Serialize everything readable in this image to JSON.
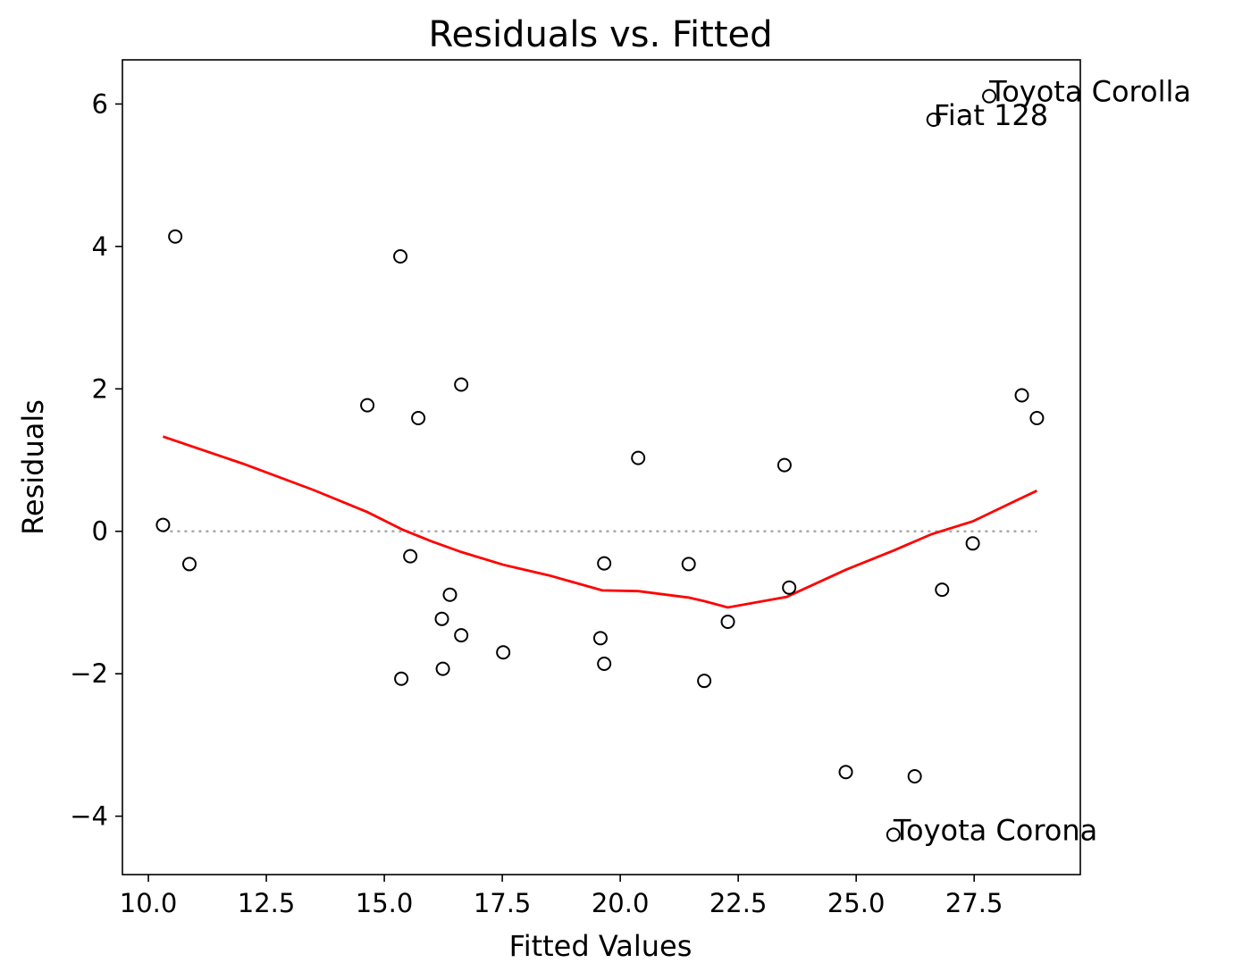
{
  "chart_data": {
    "type": "scatter",
    "title": "Residuals vs. Fitted",
    "xlabel": "Fitted Values",
    "ylabel": "Residuals",
    "xlim": [
      9.45,
      29.75
    ],
    "ylim": [
      -4.82,
      6.62
    ],
    "xticks": [
      10.0,
      12.5,
      15.0,
      17.5,
      20.0,
      22.5,
      25.0,
      27.5
    ],
    "xtick_labels": [
      "10.0",
      "12.5",
      "15.0",
      "17.5",
      "20.0",
      "22.5",
      "25.0",
      "27.5"
    ],
    "yticks": [
      -4,
      -2,
      0,
      2,
      4,
      6
    ],
    "ytick_labels": [
      "−4",
      "−2",
      "0",
      "2",
      "4",
      "6"
    ],
    "grid": false,
    "points": [
      {
        "x": 10.31,
        "y": 0.09
      },
      {
        "x": 10.57,
        "y": 4.14
      },
      {
        "x": 10.87,
        "y": -0.46
      },
      {
        "x": 14.64,
        "y": 1.77
      },
      {
        "x": 15.34,
        "y": 3.86
      },
      {
        "x": 15.36,
        "y": -2.07
      },
      {
        "x": 15.55,
        "y": -0.35
      },
      {
        "x": 15.72,
        "y": 1.59
      },
      {
        "x": 16.22,
        "y": -1.23
      },
      {
        "x": 16.24,
        "y": -1.93
      },
      {
        "x": 16.39,
        "y": -0.89
      },
      {
        "x": 16.63,
        "y": 2.06
      },
      {
        "x": 16.63,
        "y": -1.46
      },
      {
        "x": 17.52,
        "y": -1.7
      },
      {
        "x": 19.58,
        "y": -1.5
      },
      {
        "x": 19.66,
        "y": -0.45
      },
      {
        "x": 19.66,
        "y": -1.86
      },
      {
        "x": 20.38,
        "y": 1.03
      },
      {
        "x": 21.45,
        "y": -0.46
      },
      {
        "x": 21.78,
        "y": -2.1
      },
      {
        "x": 22.28,
        "y": -1.27
      },
      {
        "x": 23.48,
        "y": 0.93
      },
      {
        "x": 23.58,
        "y": -0.79
      },
      {
        "x": 24.78,
        "y": -3.38
      },
      {
        "x": 25.79,
        "y": -4.26
      },
      {
        "x": 26.24,
        "y": -3.44
      },
      {
        "x": 26.64,
        "y": 5.78
      },
      {
        "x": 26.82,
        "y": -0.82
      },
      {
        "x": 27.47,
        "y": -0.17
      },
      {
        "x": 27.82,
        "y": 6.11
      },
      {
        "x": 28.51,
        "y": 1.91
      },
      {
        "x": 28.83,
        "y": 1.59
      }
    ],
    "lowess": {
      "color": "#ff0000",
      "x": [
        10.31,
        12.0,
        13.5,
        14.64,
        15.4,
        16.0,
        16.63,
        17.52,
        18.5,
        19.62,
        20.38,
        21.45,
        21.78,
        22.28,
        23.53,
        24.78,
        25.79,
        26.6,
        27.47,
        28.1,
        28.83
      ],
      "y": [
        1.33,
        0.95,
        0.58,
        0.27,
        0.02,
        -0.14,
        -0.29,
        -0.47,
        -0.62,
        -0.83,
        -0.84,
        -0.93,
        -0.98,
        -1.07,
        -0.92,
        -0.54,
        -0.27,
        -0.04,
        0.14,
        0.34,
        0.57
      ]
    },
    "reference_line": {
      "y": 0,
      "color": "#a9a9a9"
    },
    "annotations": [
      {
        "text": "Toyota Corolla",
        "x": 27.82,
        "y": 6.11
      },
      {
        "text": "Fiat 128",
        "x": 26.64,
        "y": 5.78
      },
      {
        "text": "Toyota Corona",
        "x": 25.79,
        "y": -4.26
      }
    ]
  }
}
